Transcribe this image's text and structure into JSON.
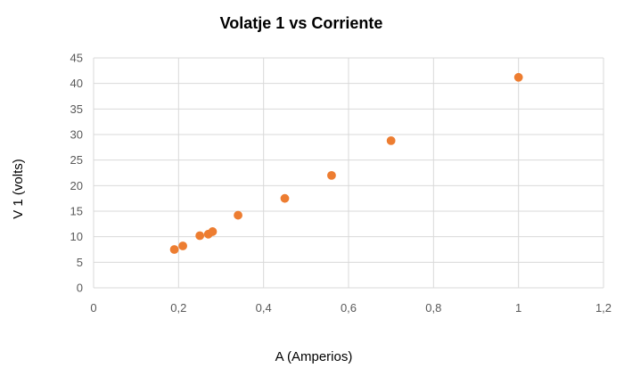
{
  "chart_data": {
    "type": "scatter",
    "title": "Volatje 1 vs Corriente",
    "xlabel": "A (Amperios)",
    "ylabel": "V 1 (volts)",
    "xlim": [
      0,
      1.2
    ],
    "ylim": [
      0,
      45
    ],
    "x_ticks": [
      "0",
      "0,2",
      "0,4",
      "0,6",
      "0,8",
      "1",
      "1,2"
    ],
    "y_ticks": [
      "0",
      "5",
      "10",
      "15",
      "20",
      "25",
      "30",
      "35",
      "40",
      "45"
    ],
    "grid": true,
    "legend": "none",
    "marker_color": "#ED7D31",
    "points": [
      {
        "x": 0.19,
        "y": 7.5
      },
      {
        "x": 0.21,
        "y": 8.2
      },
      {
        "x": 0.25,
        "y": 10.2
      },
      {
        "x": 0.27,
        "y": 10.5
      },
      {
        "x": 0.28,
        "y": 11.0
      },
      {
        "x": 0.34,
        "y": 14.2
      },
      {
        "x": 0.45,
        "y": 17.5
      },
      {
        "x": 0.56,
        "y": 22.0
      },
      {
        "x": 0.7,
        "y": 28.8
      },
      {
        "x": 1.0,
        "y": 41.2
      }
    ]
  }
}
